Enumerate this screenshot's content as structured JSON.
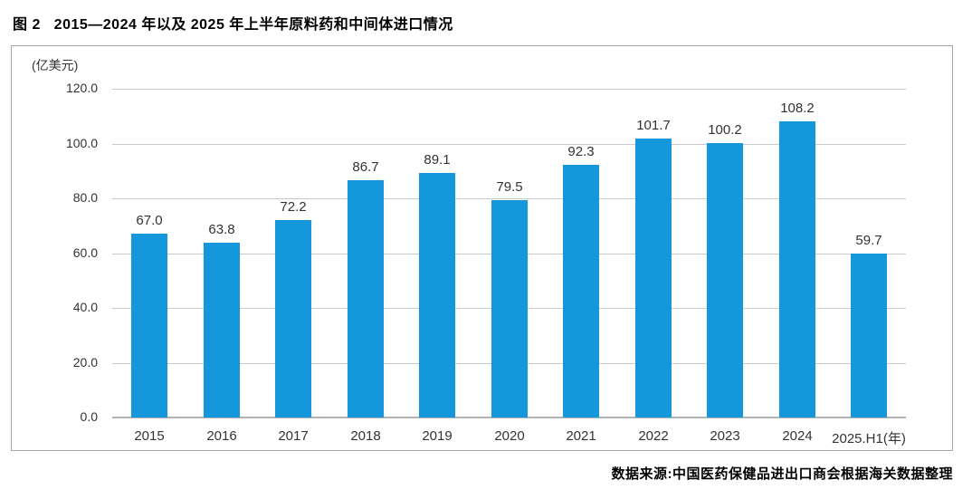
{
  "title": "图 2   2015—2024 年以及 2025 年上半年原料药和中间体进口情况",
  "source": "数据来源:中国医药保健品进出口商会根据海关数据整理",
  "colors": {
    "bar": "#1598DB",
    "gridline": "#c9c9c9",
    "baseline": "#b3b3b3",
    "frame_border": "#a6a6a6",
    "text": "#333333"
  },
  "chart_data": {
    "type": "bar",
    "title": "图 2 2015—2024 年以及 2025 年上半年原料药和中间体进口情况",
    "unit_label": "(亿美元)",
    "xlabel": "",
    "ylabel": "亿美元",
    "categories": [
      "2015",
      "2016",
      "2017",
      "2018",
      "2019",
      "2020",
      "2021",
      "2022",
      "2023",
      "2024",
      "2025.H1(年)"
    ],
    "values": [
      67.0,
      63.8,
      72.2,
      86.7,
      89.1,
      79.5,
      92.3,
      101.7,
      100.2,
      108.2,
      59.7
    ],
    "value_labels": [
      "67.0",
      "63.8",
      "72.2",
      "86.7",
      "89.1",
      "79.5",
      "92.3",
      "101.7",
      "100.2",
      "108.2",
      "59.7"
    ],
    "ylim": [
      0,
      120
    ],
    "yticks": [
      0,
      20,
      40,
      60,
      80,
      100,
      120
    ],
    "ytick_labels": [
      "0.0",
      "20.0",
      "40.0",
      "60.0",
      "80.0",
      "100.0",
      "120.0"
    ],
    "grid": "horizontal",
    "legend": "none",
    "bar_color": "#1598DB"
  }
}
